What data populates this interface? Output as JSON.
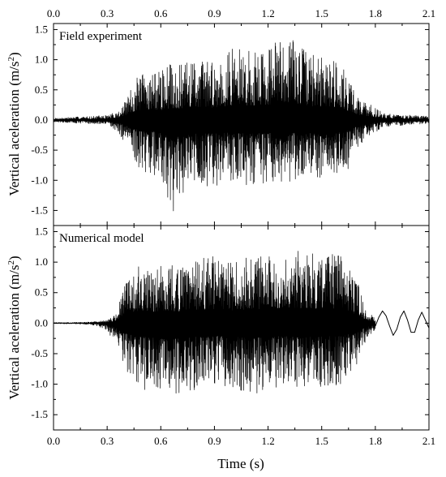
{
  "chart_data": [
    {
      "type": "line",
      "panel": "top",
      "annotation": "Field experiment",
      "ylabel_main": "Vertical aceleration (m/s",
      "ylabel_sup": "2",
      "ylabel_close": ")",
      "xlim": [
        0,
        2.1
      ],
      "ylim": [
        -1.75,
        1.6
      ],
      "x_ticks": [
        "0.0",
        "0.3",
        "0.6",
        "0.9",
        "1.2",
        "1.5",
        "1.8",
        "2.1"
      ],
      "y_ticks": [
        "-1.5",
        "-1.0",
        "-0.5",
        "0.0",
        "0.5",
        "1.0",
        "1.5"
      ],
      "grid": false,
      "series": [
        {
          "x": [
            0.0,
            0.1,
            0.2,
            0.3,
            0.36,
            0.4,
            0.45,
            0.5,
            0.55,
            0.6,
            0.65,
            0.675,
            0.7,
            0.8,
            0.9,
            1.0,
            1.1,
            1.2,
            1.3,
            1.4,
            1.5,
            1.6,
            1.65,
            1.7,
            1.75,
            1.8,
            1.85,
            1.9,
            2.0,
            2.1
          ],
          "y_max": [
            0.03,
            0.05,
            0.06,
            0.08,
            0.15,
            0.3,
            0.65,
            0.8,
            0.85,
            0.8,
            0.95,
            0.95,
            0.9,
            1.05,
            1.0,
            1.2,
            1.15,
            1.22,
            1.48,
            1.2,
            1.05,
            1.05,
            0.7,
            0.4,
            0.3,
            0.2,
            0.12,
            0.1,
            0.08,
            0.06
          ],
          "y_min": [
            -0.03,
            -0.05,
            -0.06,
            -0.08,
            -0.2,
            -0.4,
            -0.7,
            -0.85,
            -0.9,
            -1.05,
            -1.45,
            -1.6,
            -1.3,
            -1.1,
            -1.1,
            -1.0,
            -1.1,
            -1.05,
            -1.05,
            -1.0,
            -1.15,
            -1.0,
            -0.8,
            -0.45,
            -0.3,
            -0.2,
            -0.12,
            -0.1,
            -0.08,
            -0.06
          ]
        }
      ]
    },
    {
      "type": "line",
      "panel": "bottom",
      "annotation": "Numerical model",
      "ylabel_main": "Vertical aceleration (m/s",
      "ylabel_sup": "2",
      "ylabel_close": ")",
      "xlabel": "Time (s)",
      "xlim": [
        0,
        2.1
      ],
      "ylim": [
        -1.75,
        1.6
      ],
      "x_ticks": [
        "0.0",
        "0.3",
        "0.6",
        "0.9",
        "1.2",
        "1.5",
        "1.8",
        "2.1"
      ],
      "y_ticks": [
        "-1.5",
        "-1.0",
        "-0.5",
        "0.0",
        "0.5",
        "1.0",
        "1.5"
      ],
      "grid": false,
      "series": [
        {
          "x": [
            0.0,
            0.1,
            0.2,
            0.25,
            0.3,
            0.35,
            0.4,
            0.45,
            0.5,
            0.55,
            0.6,
            0.65,
            0.7,
            0.8,
            0.9,
            1.0,
            1.1,
            1.2,
            1.3,
            1.4,
            1.5,
            1.6,
            1.7,
            1.75,
            1.8
          ],
          "y_max": [
            0.01,
            0.01,
            0.02,
            0.03,
            0.05,
            0.15,
            0.65,
            0.9,
            0.95,
            0.85,
            1.0,
            1.0,
            0.9,
            1.05,
            1.1,
            1.0,
            1.1,
            1.15,
            1.25,
            1.18,
            1.18,
            1.15,
            0.7,
            0.2,
            0.1
          ],
          "y_min": [
            -0.01,
            -0.01,
            -0.02,
            -0.05,
            -0.15,
            -0.3,
            -0.8,
            -1.0,
            -1.1,
            -1.05,
            -1.15,
            -1.35,
            -1.15,
            -1.1,
            -1.0,
            -1.05,
            -1.2,
            -1.1,
            -1.0,
            -1.1,
            -1.05,
            -1.05,
            -0.7,
            -0.25,
            -0.15
          ]
        },
        {
          "x": [
            1.8,
            1.82,
            1.84,
            1.86,
            1.88,
            1.9,
            1.92,
            1.94,
            1.96,
            1.98,
            2.0,
            2.02,
            2.04,
            2.06,
            2.08,
            2.1
          ],
          "y": [
            -0.05,
            0.1,
            0.2,
            0.12,
            -0.05,
            -0.2,
            -0.1,
            0.1,
            0.2,
            0.05,
            -0.15,
            -0.15,
            0.05,
            0.18,
            0.05,
            -0.08
          ]
        }
      ]
    }
  ]
}
